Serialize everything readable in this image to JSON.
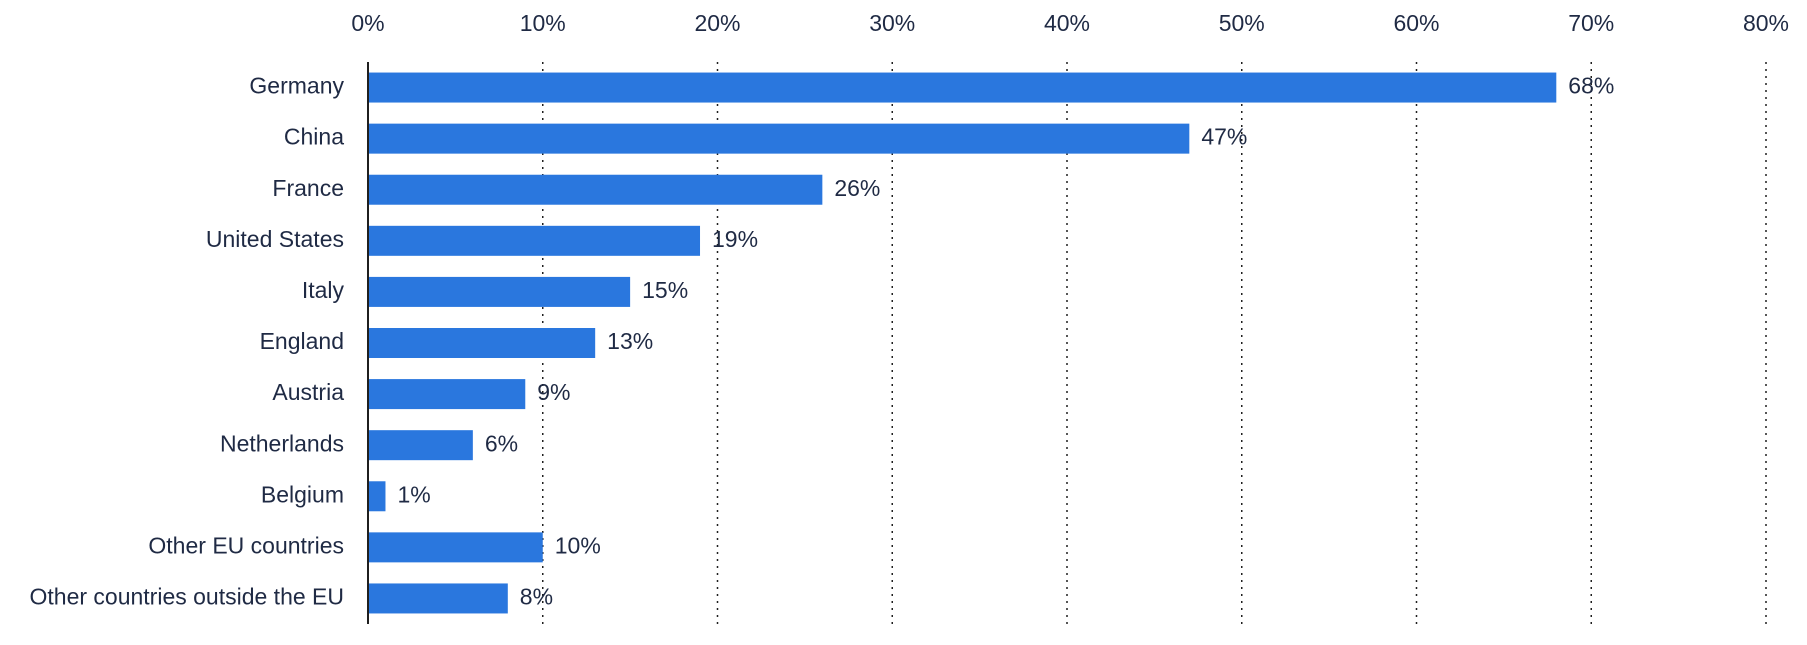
{
  "chart_data": {
    "type": "bar",
    "orientation": "horizontal",
    "title": "",
    "xlabel": "",
    "ylabel": "",
    "xlim": [
      0,
      80
    ],
    "xticks": [
      0,
      10,
      20,
      30,
      40,
      50,
      60,
      70,
      80
    ],
    "tick_suffix": "%",
    "grid": true,
    "categories": [
      "Germany",
      "China",
      "France",
      "United States",
      "Italy",
      "England",
      "Austria",
      "Netherlands",
      "Belgium",
      "Other EU countries",
      "Other countries outside the EU"
    ],
    "values": [
      68,
      47,
      26,
      19,
      15,
      13,
      9,
      6,
      1,
      10,
      8
    ],
    "value_labels": [
      "68%",
      "47%",
      "26%",
      "19%",
      "15%",
      "13%",
      "9%",
      "6%",
      "1%",
      "10%",
      "8%"
    ],
    "colors": {
      "bar": "#2a77de",
      "text": "#1f2a44",
      "axis": "#1f1f1f",
      "grid": "#1f1f1f"
    }
  }
}
